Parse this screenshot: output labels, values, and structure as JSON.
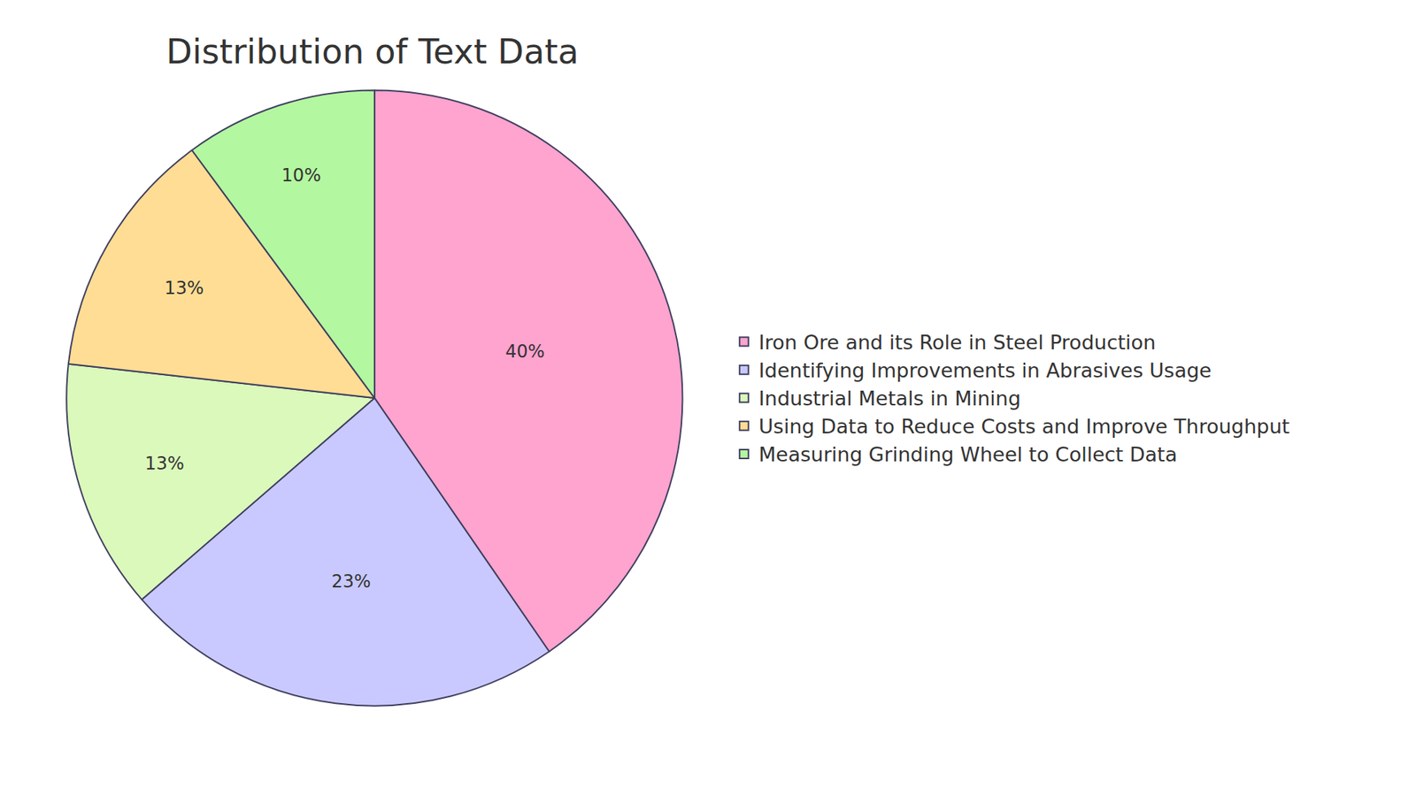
{
  "chart_data": {
    "type": "pie",
    "title": "Distribution of Text Data",
    "categories": [
      "Iron Ore and its Role in Steel Production",
      "Identifying Improvements in Abrasives Usage",
      "Industrial Metals in Mining",
      "Using Data to Reduce Costs and Improve Throughput",
      "Measuring Grinding Wheel to Collect Data"
    ],
    "values": [
      40,
      23,
      13,
      13,
      10
    ],
    "value_labels": [
      "40%",
      "23%",
      "13%",
      "13%",
      "10%"
    ],
    "colors": [
      "#ffa3cf",
      "#c9c9ff",
      "#dbf9bb",
      "#ffdd94",
      "#b3f7a0"
    ],
    "data_labels": true,
    "legend": "right"
  }
}
